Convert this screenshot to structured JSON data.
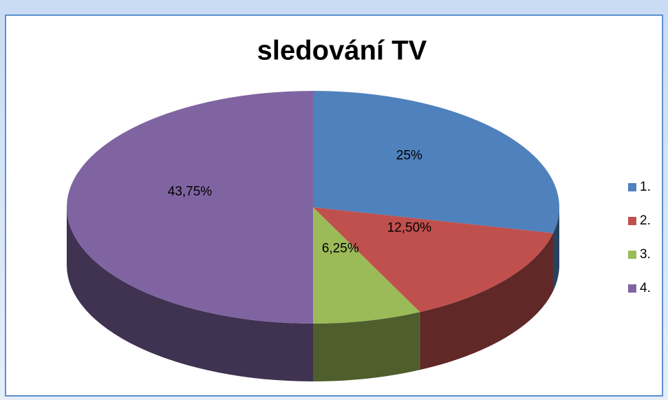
{
  "chart_data": {
    "type": "pie",
    "title": "sledování TV",
    "categories": [
      "1.",
      "2.",
      "3.",
      "4."
    ],
    "values": [
      25,
      12.5,
      6.25,
      43.75
    ],
    "value_labels": [
      "25%",
      "12,50%",
      "6,25%",
      "43,75%"
    ],
    "colors": [
      "#4f81bd",
      "#c0504d",
      "#9bbb59",
      "#8064a2"
    ],
    "legend": "right"
  }
}
